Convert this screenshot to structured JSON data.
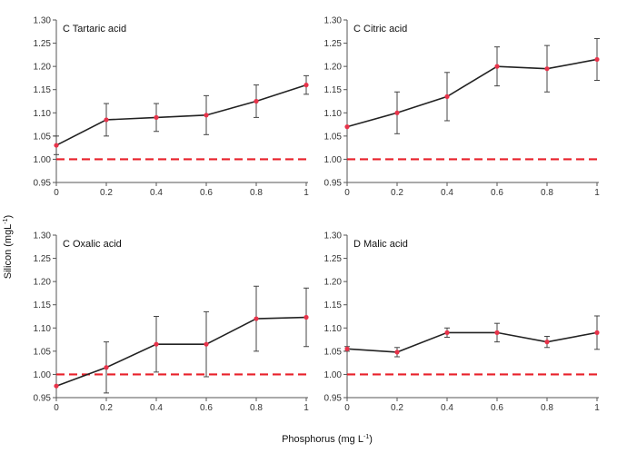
{
  "figure": {
    "ylabel_main": "Silicon (mgL",
    "ylabel_sup": "-1",
    "ylabel_end": ")",
    "xlabel_main": "Phosphorus (mg L",
    "xlabel_sup": "-1",
    "xlabel_end": ")",
    "colors": {
      "series": "#222222",
      "point": "#e8334a",
      "reference": "#e8202a",
      "axis": "#555555"
    }
  },
  "chart_data": [
    {
      "type": "line",
      "title": "C Tartaric acid",
      "x": [
        0,
        0.2,
        0.4,
        0.6,
        0.8,
        1
      ],
      "x_tick_labels": [
        "0",
        "0.2",
        "0.4",
        "0.6",
        "0.8",
        "1"
      ],
      "y_tick_labels": [
        "0.95",
        "1.00",
        "1.05",
        "1.10",
        "1.15",
        "1.20",
        "1.25",
        "1.30"
      ],
      "xlim": [
        0,
        1
      ],
      "ylim": [
        0.95,
        1.3
      ],
      "series": [
        {
          "values": [
            1.03,
            1.085,
            1.09,
            1.095,
            1.125,
            1.16
          ],
          "error": [
            0.02,
            0.035,
            0.03,
            0.042,
            0.035,
            0.02
          ]
        }
      ],
      "reference_line": 1.0
    },
    {
      "type": "line",
      "title": "C Citric acid",
      "x": [
        0,
        0.2,
        0.4,
        0.6,
        0.8,
        1
      ],
      "x_tick_labels": [
        "0",
        "0.2",
        "0.4",
        "0.6",
        "0.8",
        "1"
      ],
      "y_tick_labels": [
        "0.95",
        "1.00",
        "1.05",
        "1.10",
        "1.15",
        "1.20",
        "1.25",
        "1.30"
      ],
      "xlim": [
        0,
        1
      ],
      "ylim": [
        0.95,
        1.3
      ],
      "series": [
        {
          "values": [
            1.07,
            1.1,
            1.135,
            1.2,
            1.195,
            1.215
          ],
          "error": [
            0.0,
            0.045,
            0.052,
            0.042,
            0.05,
            0.045
          ]
        }
      ],
      "reference_line": 1.0
    },
    {
      "type": "line",
      "title": "C Oxalic acid",
      "x": [
        0,
        0.2,
        0.4,
        0.6,
        0.8,
        1
      ],
      "x_tick_labels": [
        "0",
        "0.2",
        "0.4",
        "0.6",
        "0.8",
        "1"
      ],
      "y_tick_labels": [
        "0.95",
        "1.00",
        "1.05",
        "1.10",
        "1.15",
        "1.20",
        "1.25",
        "1.30"
      ],
      "xlim": [
        0,
        1
      ],
      "ylim": [
        0.95,
        1.3
      ],
      "series": [
        {
          "values": [
            0.975,
            1.015,
            1.065,
            1.065,
            1.12,
            1.123
          ],
          "error": [
            0.0,
            0.055,
            0.06,
            0.07,
            0.07,
            0.063
          ]
        }
      ],
      "reference_line": 1.0
    },
    {
      "type": "line",
      "title": "D Malic acid",
      "x": [
        0,
        0.2,
        0.4,
        0.6,
        0.8,
        1
      ],
      "x_tick_labels": [
        "0",
        "0.2",
        "0.4",
        "0.6",
        "0.8",
        "1"
      ],
      "y_tick_labels": [
        "0.95",
        "1.00",
        "1.05",
        "1.10",
        "1.15",
        "1.20",
        "1.25",
        "1.30"
      ],
      "xlim": [
        0,
        1
      ],
      "ylim": [
        0.95,
        1.3
      ],
      "series": [
        {
          "values": [
            1.055,
            1.048,
            1.09,
            1.09,
            1.07,
            1.09
          ],
          "error": [
            0.005,
            0.01,
            0.01,
            0.02,
            0.012,
            0.036
          ]
        }
      ],
      "reference_line": 1.0
    }
  ]
}
